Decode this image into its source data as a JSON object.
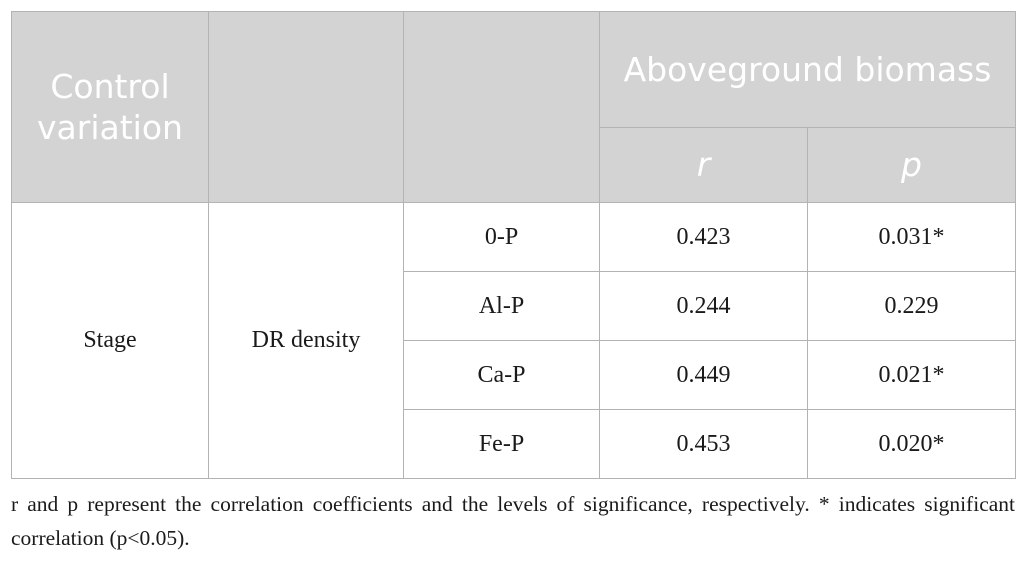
{
  "table": {
    "header": {
      "control_variation": "Control variation",
      "col2": "",
      "col3": "",
      "group": "Aboveground biomass",
      "r_label": "r",
      "p_label": "p"
    },
    "stage_label": "Stage",
    "variable_label": "DR density",
    "rows": [
      {
        "fraction": "0-P",
        "r": "0.423",
        "p": "0.031*"
      },
      {
        "fraction": "Al-P",
        "r": "0.244",
        "p": "0.229"
      },
      {
        "fraction": "Ca-P",
        "r": "0.449",
        "p": "0.021*"
      },
      {
        "fraction": "Fe-P",
        "r": "0.453",
        "p": "0.020*"
      }
    ]
  },
  "footnote": "r and p represent the correlation coefficients and the levels of significance, respectively. * indicates significant correlation (p<0.05).",
  "colors": {
    "header_background": "#d3d3d3",
    "header_text": "#ffffff",
    "border": "#b3b3b3"
  }
}
